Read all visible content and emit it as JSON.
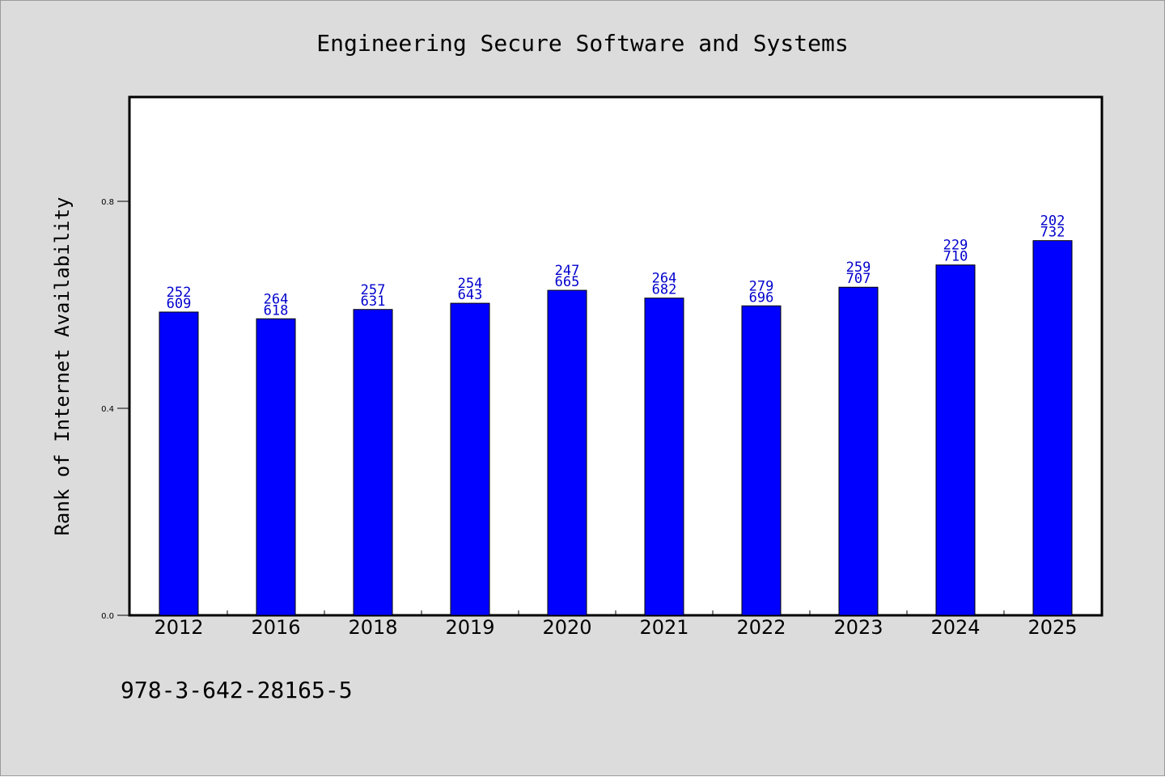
{
  "chart_data": {
    "type": "bar",
    "title": "Engineering Secure Software and Systems",
    "ylabel": "Rank of Internet Availability",
    "xlabel": "",
    "categories": [
      "2012",
      "2016",
      "2018",
      "2019",
      "2020",
      "2021",
      "2022",
      "2023",
      "2024",
      "2025"
    ],
    "series": [
      {
        "values": [
          0.586,
          0.573,
          0.591,
          0.603,
          0.628,
          0.613,
          0.598,
          0.634,
          0.677,
          0.724
        ]
      }
    ],
    "data_labels": [
      [
        "252",
        "609"
      ],
      [
        "264",
        "618"
      ],
      [
        "257",
        "631"
      ],
      [
        "254",
        "643"
      ],
      [
        "247",
        "665"
      ],
      [
        "264",
        "682"
      ],
      [
        "279",
        "696"
      ],
      [
        "259",
        "707"
      ],
      [
        "229",
        "710"
      ],
      [
        "202",
        "732"
      ]
    ],
    "y_ticks": [
      "0.0",
      "0.4",
      "0.8"
    ],
    "y_tick_values": [
      0.0,
      0.4,
      0.8
    ],
    "ylim": [
      0.0,
      1.0
    ],
    "grid": false,
    "legend": "none",
    "footnote": "978-3-642-28165-5",
    "colors": {
      "bar": "#0000ff",
      "bar_edge": "#000000",
      "label": "#0000cc",
      "background": "#dcdcdc",
      "plot_background": "#ffffff"
    }
  }
}
